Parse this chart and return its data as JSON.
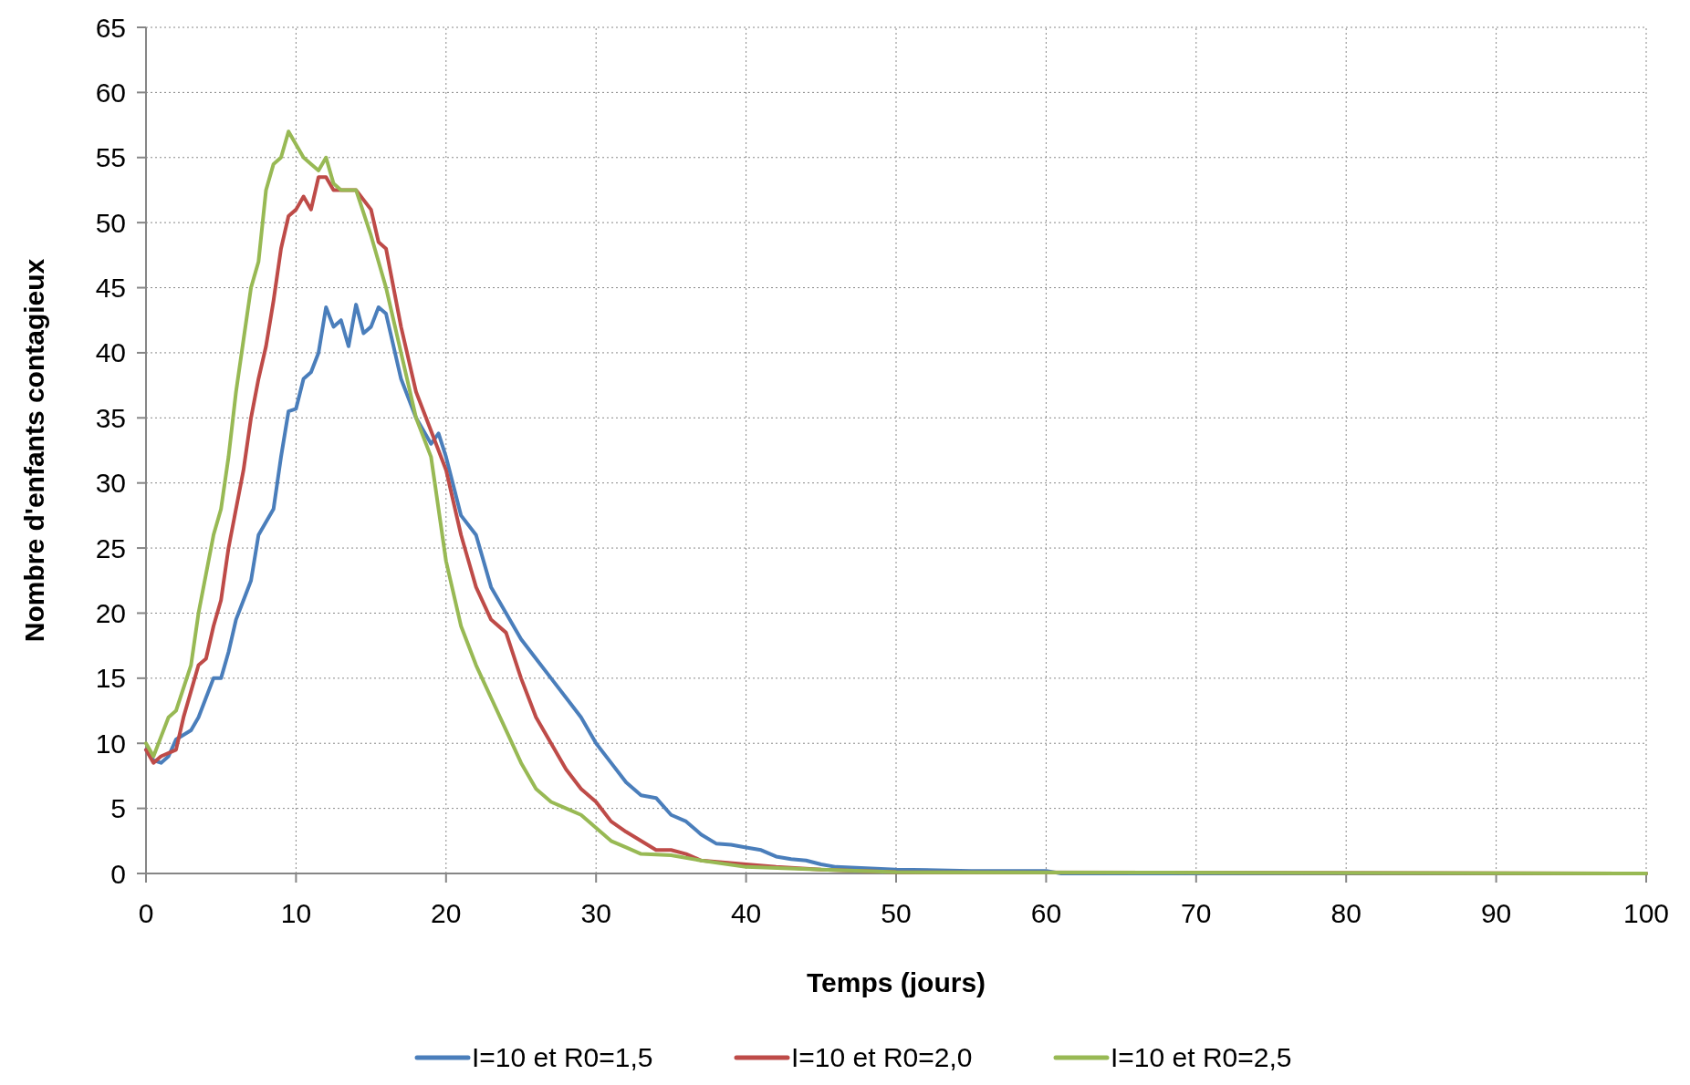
{
  "chart_data": {
    "type": "line",
    "xlabel": "Temps (jours)",
    "ylabel": "Nombre d'enfants contagieux",
    "xlim": [
      0,
      100
    ],
    "ylim": [
      0,
      65
    ],
    "xticks": [
      0,
      10,
      20,
      30,
      40,
      50,
      60,
      70,
      80,
      90,
      100
    ],
    "yticks": [
      0,
      5,
      10,
      15,
      20,
      25,
      30,
      35,
      40,
      45,
      50,
      55,
      60,
      65
    ],
    "grid": true,
    "legend": "bottom",
    "line_style": "solid",
    "marker": "none",
    "series": [
      {
        "name": "I=10 et R0=1,5",
        "color": "#4a7ebb",
        "x": [
          0,
          0.5,
          1,
          1.5,
          2,
          3,
          3.5,
          4,
          4.5,
          5,
          5.5,
          6,
          6.5,
          7,
          7.5,
          8,
          8.5,
          9,
          9.5,
          10,
          10.5,
          11,
          11.5,
          12,
          12.5,
          13,
          13.5,
          14,
          14.5,
          15,
          15.5,
          16,
          17,
          18,
          19,
          19.5,
          20,
          21,
          22,
          23,
          24,
          25,
          26,
          27,
          28,
          29,
          30,
          31,
          32,
          33,
          34,
          35,
          36,
          37,
          38,
          39,
          40,
          41,
          42,
          43,
          44,
          45,
          46,
          48,
          50,
          55,
          60,
          61,
          100
        ],
        "values": [
          9.5,
          8.7,
          8.5,
          9,
          10.3,
          11,
          12,
          13.5,
          15,
          15,
          17,
          19.5,
          21,
          22.5,
          26,
          27,
          28,
          32,
          35.5,
          35.7,
          38,
          38.5,
          40,
          43.5,
          42,
          42.5,
          40.5,
          43.7,
          41.5,
          42,
          43.5,
          43,
          38,
          35,
          33,
          33.8,
          32,
          27.5,
          26,
          22,
          20,
          18,
          16.5,
          15,
          13.5,
          12,
          10,
          8.5,
          7,
          6,
          5.8,
          4.5,
          4,
          3,
          2.3,
          2.2,
          2,
          1.8,
          1.3,
          1.1,
          1,
          0.7,
          0.5,
          0.4,
          0.3,
          0.2,
          0.2,
          0,
          0
        ]
      },
      {
        "name": "I=10 et R0=2,0",
        "color": "#be4b48",
        "x": [
          0,
          0.5,
          1,
          2,
          2.5,
          3,
          3.5,
          4,
          4.5,
          5,
          5.5,
          6,
          6.5,
          7,
          7.5,
          8,
          8.5,
          9,
          9.5,
          10,
          10.5,
          11,
          11.5,
          12,
          12.5,
          13,
          14,
          15,
          15.5,
          16,
          16.5,
          17,
          18,
          19,
          20,
          21,
          22,
          23,
          24,
          25,
          26,
          27,
          28,
          29,
          30,
          31,
          32,
          33,
          34,
          35,
          36,
          37,
          40,
          42,
          45,
          50,
          100
        ],
        "values": [
          9.5,
          8.5,
          9,
          9.5,
          12,
          14,
          16,
          16.5,
          19,
          21,
          25,
          28,
          31,
          35,
          38,
          40.5,
          44,
          48,
          50.5,
          51,
          52,
          51,
          53.5,
          53.5,
          52.5,
          52.5,
          52.5,
          51,
          48.5,
          48,
          45,
          42,
          37,
          34,
          31,
          26,
          22,
          19.5,
          18.5,
          15,
          12,
          10,
          8,
          6.5,
          5.5,
          4,
          3.2,
          2.5,
          1.8,
          1.8,
          1.5,
          1,
          0.7,
          0.5,
          0.3,
          0.1,
          0
        ]
      },
      {
        "name": "I=10 et R0=2,5",
        "color": "#98b954",
        "x": [
          0,
          0.5,
          1,
          1.5,
          2,
          3,
          3.5,
          4,
          4.5,
          5,
          5.5,
          6,
          6.5,
          7,
          7.5,
          8,
          8.5,
          9,
          9.5,
          10,
          10.5,
          11,
          11.5,
          12,
          12.5,
          13,
          14,
          15,
          16,
          17,
          18,
          19,
          20,
          21,
          22,
          23,
          24,
          25,
          26,
          27,
          28,
          29,
          30,
          31,
          32,
          33,
          35,
          37,
          40,
          45,
          50,
          100
        ],
        "values": [
          10,
          9,
          10.5,
          12,
          12.5,
          16,
          20,
          23,
          26,
          28,
          32,
          37,
          41,
          45,
          47,
          52.5,
          54.5,
          55,
          57,
          56,
          55,
          54.5,
          54,
          55,
          53,
          52.5,
          52.5,
          49,
          45,
          40,
          35,
          32,
          24,
          19,
          16,
          13.5,
          11,
          8.5,
          6.5,
          5.5,
          5,
          4.5,
          3.5,
          2.5,
          2,
          1.5,
          1.4,
          1,
          0.5,
          0.3,
          0.1,
          0
        ]
      }
    ]
  }
}
